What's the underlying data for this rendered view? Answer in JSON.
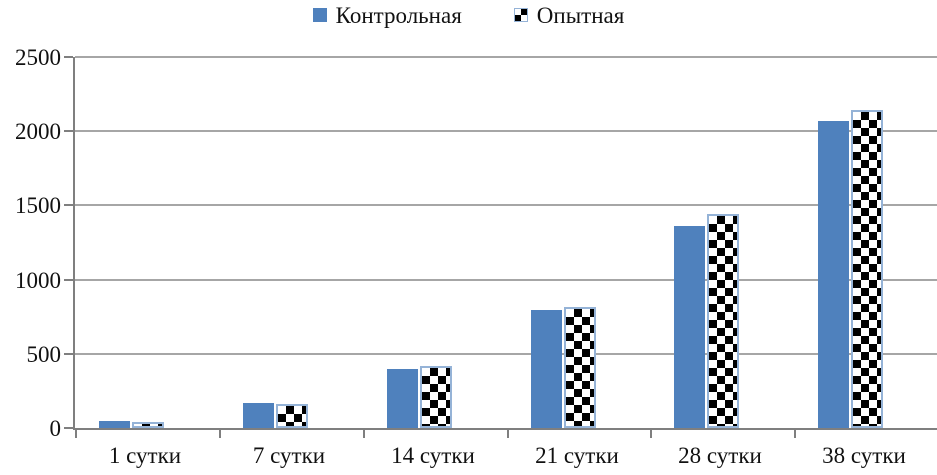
{
  "chart_data": {
    "type": "bar",
    "title": "",
    "xlabel": "",
    "ylabel": "",
    "categories": [
      "1 сутки",
      "7 сутки",
      "14 сутки",
      "21 сутки",
      "28 сутки",
      "38 сутки"
    ],
    "series": [
      {
        "name": "Контрольная",
        "style": "solid",
        "color": "#4f81bd",
        "values": [
          45,
          170,
          400,
          795,
          1360,
          2070
        ]
      },
      {
        "name": "Опытная",
        "style": "checker",
        "color": "checkerboard-black-white",
        "border_color": "#95b3d7",
        "values": [
          40,
          165,
          415,
          815,
          1445,
          2140
        ]
      }
    ],
    "ylim": [
      0,
      2500
    ],
    "yticks": [
      0,
      500,
      1000,
      1500,
      2000,
      2500
    ],
    "grid": "horizontal",
    "legend_position": "top-center"
  },
  "legend": {
    "items": [
      {
        "label": "Контрольная",
        "swatch": "solid-blue-square-icon"
      },
      {
        "label": "Опытная",
        "swatch": "checker-square-icon"
      }
    ]
  },
  "colors": {
    "series1": "#4f81bd",
    "series2_border": "#95b3d7",
    "axis": "#7f7f7f",
    "gridline": "#a6a6a6",
    "text": "#111111",
    "background": "#ffffff"
  }
}
